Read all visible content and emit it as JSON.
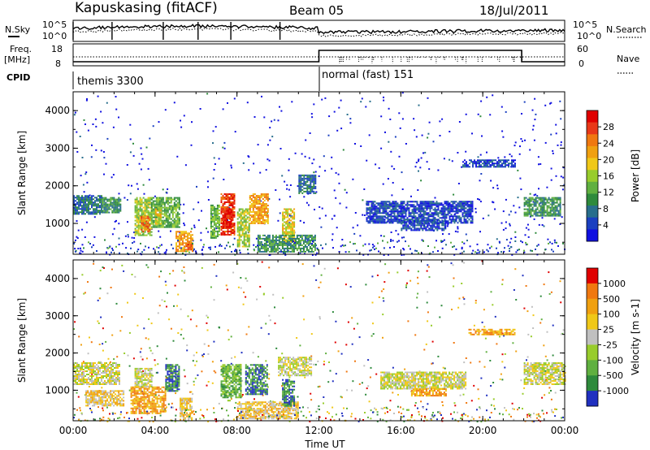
{
  "header": {
    "station": "Kapuskasing (fitACF)",
    "beam": "Beam 05",
    "date": "18/Jul/2011"
  },
  "top_panel": {
    "left_label_top": "N.Sky",
    "left_label_freq": "Freq.",
    "left_label_freq_unit": "[MHz]",
    "left_label_cpid": "CPID",
    "left_ticks_sky": [
      "10^5",
      "10^0"
    ],
    "left_ticks_freq": [
      "18",
      "8"
    ],
    "right_label_search": "N.Search",
    "right_label_nave": "Nave",
    "right_ticks_search": [
      "10^5",
      "10^0"
    ],
    "right_ticks_nave": [
      "60",
      "0"
    ],
    "cpid_segments": [
      {
        "label": "themis 3300",
        "start_hour": 0,
        "end_hour": 12
      },
      {
        "label": "normal (fast) 151",
        "start_hour": 12,
        "end_hour": 24
      }
    ]
  },
  "chart_data": [
    {
      "type": "heatmap",
      "name": "power",
      "ylabel": "Slant Range [km]",
      "xlabel": "",
      "x_ticks": [
        "00:00",
        "04:00",
        "08:00",
        "12:00",
        "16:00",
        "20:00",
        "00:00"
      ],
      "x_range_hours": [
        0,
        24
      ],
      "y_ticks": [
        1000,
        2000,
        3000,
        4000
      ],
      "y_range_km": [
        180,
        4500
      ],
      "colorbar": {
        "label": "Power [dB]",
        "ticks": [
          "4",
          "8",
          "12",
          "16",
          "20",
          "24",
          "28"
        ],
        "colors": [
          "#1010e0",
          "#1a40c0",
          "#286e8c",
          "#2e8a3c",
          "#60b040",
          "#98cc2c",
          "#f0c818",
          "#f0a010",
          "#f07810",
          "#e83818",
          "#e00000"
        ]
      },
      "regions": [
        {
          "h0": 0.0,
          "h1": 1.4,
          "r0": 1250,
          "r1": 1750,
          "level": 2
        },
        {
          "h0": 1.4,
          "h1": 2.3,
          "r0": 1300,
          "r1": 1700,
          "level": 3
        },
        {
          "h0": 3.0,
          "h1": 3.8,
          "r0": 700,
          "r1": 1700,
          "level": 5
        },
        {
          "h0": 3.3,
          "h1": 3.7,
          "r0": 800,
          "r1": 1200,
          "level": 8
        },
        {
          "h0": 3.8,
          "h1": 5.2,
          "r0": 900,
          "r1": 1700,
          "level": 4
        },
        {
          "h0": 4.0,
          "h1": 4.3,
          "r0": 1000,
          "r1": 1400,
          "level": 6
        },
        {
          "h0": 5.0,
          "h1": 5.8,
          "r0": 250,
          "r1": 800,
          "level": 7
        },
        {
          "h0": 5.5,
          "h1": 5.8,
          "r0": 300,
          "r1": 500,
          "level": 9
        },
        {
          "h0": 6.7,
          "h1": 7.1,
          "r0": 600,
          "r1": 1500,
          "level": 4
        },
        {
          "h0": 7.2,
          "h1": 7.9,
          "r0": 700,
          "r1": 1800,
          "level": 9
        },
        {
          "h0": 7.3,
          "h1": 7.7,
          "r0": 900,
          "r1": 1400,
          "level": 10
        },
        {
          "h0": 8.0,
          "h1": 8.6,
          "r0": 400,
          "r1": 1400,
          "level": 5
        },
        {
          "h0": 8.6,
          "h1": 9.5,
          "r0": 1000,
          "r1": 1800,
          "level": 7
        },
        {
          "h0": 10.2,
          "h1": 10.8,
          "r0": 500,
          "r1": 1400,
          "level": 6
        },
        {
          "h0": 9.0,
          "h1": 11.8,
          "r0": 250,
          "r1": 700,
          "level": 3
        },
        {
          "h0": 11.0,
          "h1": 11.8,
          "r0": 1800,
          "r1": 2300,
          "level": 2
        },
        {
          "h0": 14.3,
          "h1": 19.5,
          "r0": 1000,
          "r1": 1600,
          "level": 1
        },
        {
          "h0": 16.0,
          "h1": 18.2,
          "r0": 800,
          "r1": 1100,
          "level": 1
        },
        {
          "h0": 19.0,
          "h1": 21.6,
          "r0": 2500,
          "r1": 2700,
          "level": 1
        },
        {
          "h0": 22.0,
          "h1": 23.8,
          "r0": 1200,
          "r1": 1700,
          "level": 3
        }
      ]
    },
    {
      "type": "heatmap",
      "name": "velocity",
      "ylabel": "Slant Range [km]",
      "xlabel": "Time UT",
      "x_ticks": [
        "00:00",
        "04:00",
        "08:00",
        "12:00",
        "16:00",
        "20:00",
        "00:00"
      ],
      "x_range_hours": [
        0,
        24
      ],
      "y_ticks": [
        1000,
        2000,
        3000,
        4000
      ],
      "y_range_km": [
        180,
        4500
      ],
      "colorbar": {
        "label": "Velocity [m s-1]",
        "ticks": [
          "1000",
          "500",
          "100",
          "25",
          "-25",
          "-100",
          "-500",
          "-1000"
        ],
        "colors": [
          "#2030c0",
          "#2e8a3c",
          "#60b040",
          "#98cc2c",
          "#c0c0c0",
          "#f0c818",
          "#f0a010",
          "#f07810",
          "#e00000"
        ]
      },
      "regions": [
        {
          "h0": 0.0,
          "h1": 2.3,
          "r0": 1150,
          "r1": 1750,
          "level": 4
        },
        {
          "h0": 0.6,
          "h1": 2.5,
          "r0": 600,
          "r1": 1000,
          "level": 5
        },
        {
          "h0": 2.8,
          "h1": 4.5,
          "r0": 400,
          "r1": 1100,
          "level": 6
        },
        {
          "h0": 3.0,
          "h1": 3.8,
          "r0": 1100,
          "r1": 1600,
          "level": 4
        },
        {
          "h0": 4.5,
          "h1": 5.2,
          "r0": 1000,
          "r1": 1700,
          "level": 1
        },
        {
          "h0": 5.2,
          "h1": 5.8,
          "r0": 200,
          "r1": 800,
          "level": 5
        },
        {
          "h0": 7.2,
          "h1": 8.2,
          "r0": 800,
          "r1": 1700,
          "level": 2
        },
        {
          "h0": 8.4,
          "h1": 9.5,
          "r0": 900,
          "r1": 1700,
          "level": 1
        },
        {
          "h0": 8.0,
          "h1": 11.0,
          "r0": 250,
          "r1": 700,
          "level": 5
        },
        {
          "h0": 10.2,
          "h1": 10.8,
          "r0": 600,
          "r1": 1300,
          "level": 1
        },
        {
          "h0": 10.0,
          "h1": 11.6,
          "r0": 1400,
          "r1": 1900,
          "level": 4
        },
        {
          "h0": 15.0,
          "h1": 19.2,
          "r0": 1050,
          "r1": 1500,
          "level": 4
        },
        {
          "h0": 16.5,
          "h1": 18.2,
          "r0": 850,
          "r1": 1050,
          "level": 6
        },
        {
          "h0": 19.3,
          "h1": 21.6,
          "r0": 2500,
          "r1": 2650,
          "level": 6
        },
        {
          "h0": 22.0,
          "h1": 24.0,
          "r0": 1150,
          "r1": 1750,
          "level": 4
        }
      ]
    }
  ]
}
